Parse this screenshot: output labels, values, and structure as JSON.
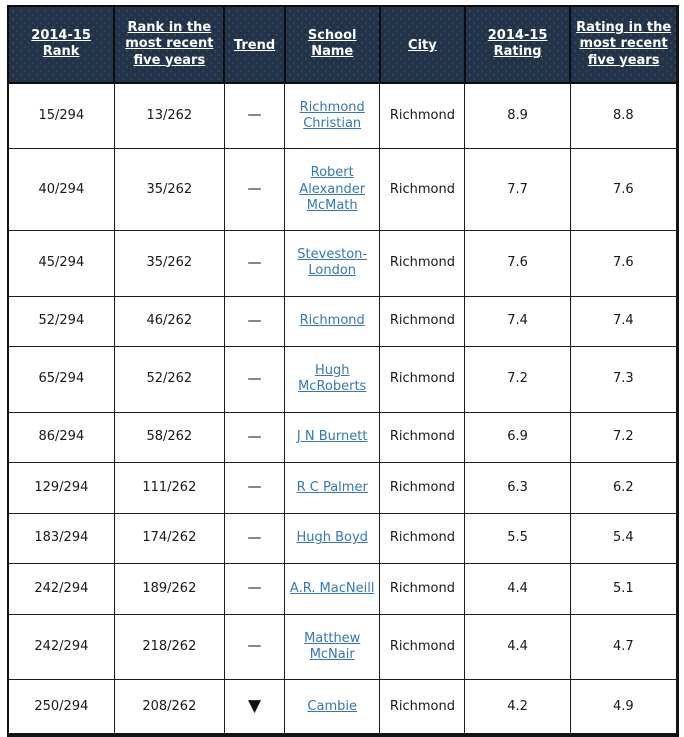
{
  "table": {
    "columns": [
      {
        "id": "rank",
        "label": "2014-15 Rank"
      },
      {
        "id": "rank_recent",
        "label": "Rank in the most recent five years"
      },
      {
        "id": "trend",
        "label": "Trend"
      },
      {
        "id": "school",
        "label": "School Name"
      },
      {
        "id": "city",
        "label": "City"
      },
      {
        "id": "rating",
        "label": "2014-15 Rating"
      },
      {
        "id": "rating_recent",
        "label": "Rating in the most recent five years"
      }
    ],
    "rows": [
      {
        "rank": "15/294",
        "rank_recent": "13/262",
        "trend": "—",
        "school": "Richmond Christian",
        "city": "Richmond",
        "rating": "8.9",
        "rating_recent": "8.8"
      },
      {
        "rank": "40/294",
        "rank_recent": "35/262",
        "trend": "—",
        "school": "Robert Alexander McMath",
        "city": "Richmond",
        "rating": "7.7",
        "rating_recent": "7.6"
      },
      {
        "rank": "45/294",
        "rank_recent": "35/262",
        "trend": "—",
        "school": "Steveston-London",
        "city": "Richmond",
        "rating": "7.6",
        "rating_recent": "7.6"
      },
      {
        "rank": "52/294",
        "rank_recent": "46/262",
        "trend": "—",
        "school": "Richmond",
        "city": "Richmond",
        "rating": "7.4",
        "rating_recent": "7.4"
      },
      {
        "rank": "65/294",
        "rank_recent": "52/262",
        "trend": "—",
        "school": "Hugh McRoberts",
        "city": "Richmond",
        "rating": "7.2",
        "rating_recent": "7.3"
      },
      {
        "rank": "86/294",
        "rank_recent": "58/262",
        "trend": "—",
        "school": "J N Burnett",
        "city": "Richmond",
        "rating": "6.9",
        "rating_recent": "7.2"
      },
      {
        "rank": "129/294",
        "rank_recent": "111/262",
        "trend": "—",
        "school": "R C Palmer",
        "city": "Richmond",
        "rating": "6.3",
        "rating_recent": "6.2"
      },
      {
        "rank": "183/294",
        "rank_recent": "174/262",
        "trend": "—",
        "school": "Hugh Boyd",
        "city": "Richmond",
        "rating": "5.5",
        "rating_recent": "5.4"
      },
      {
        "rank": "242/294",
        "rank_recent": "189/262",
        "trend": "—",
        "school": "A.R. MacNeill",
        "city": "Richmond",
        "rating": "4.4",
        "rating_recent": "5.1"
      },
      {
        "rank": "242/294",
        "rank_recent": "218/262",
        "trend": "—",
        "school": "Matthew McNair",
        "city": "Richmond",
        "rating": "4.4",
        "rating_recent": "4.7"
      },
      {
        "rank": "250/294",
        "rank_recent": "208/262",
        "trend": "▼",
        "school": "Cambie",
        "city": "Richmond",
        "rating": "4.2",
        "rating_recent": "4.9"
      }
    ]
  },
  "colors": {
    "header_bg": "#223349",
    "header_dot": "#34495e",
    "header_text": "#ffffff",
    "cell_text": "#181820",
    "link": "#3478b5",
    "border": "#141414",
    "trend_down": "#000000"
  }
}
